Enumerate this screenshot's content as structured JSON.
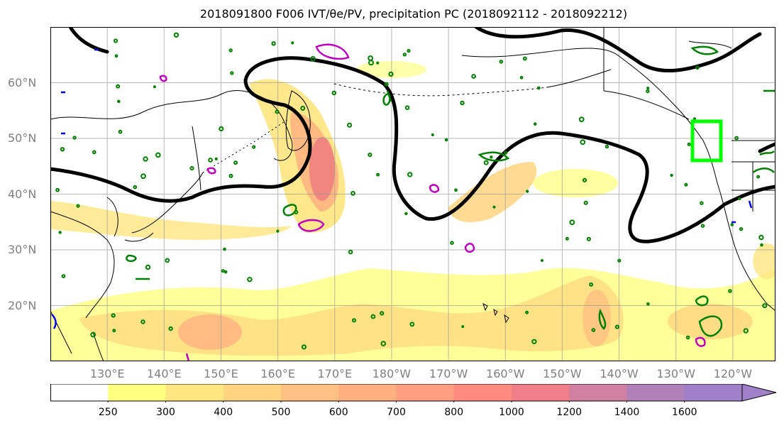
{
  "title": "2018091800 F006 IVT/θe/PV, precipitation PC (2018092112 - 2018092212)",
  "map": {
    "projection": "PlateCarree",
    "lon_range_east": [
      120,
      247.5
    ],
    "lat_range": [
      10,
      70
    ],
    "lat_labels": [
      "20°N",
      "30°N",
      "40°N",
      "50°N",
      "60°N"
    ],
    "lat_values": [
      20,
      30,
      40,
      50,
      60
    ],
    "lon_labels": [
      "130°E",
      "140°E",
      "150°E",
      "160°E",
      "170°E",
      "180°W",
      "170°W",
      "160°W",
      "150°W",
      "140°W",
      "130°W",
      "120°W"
    ],
    "lon_values": [
      130,
      140,
      150,
      160,
      170,
      180,
      190,
      200,
      210,
      220,
      230,
      240
    ],
    "grid": true,
    "coastline_color": "#000000",
    "contour_colors": {
      "theta_e": "#000000",
      "pv_positive": "#008000",
      "pv_negative": "#c000c0",
      "blue_contour": "#0000ff",
      "target_box": "#00ff00"
    }
  },
  "colorbar": {
    "tick_labels": [
      "250",
      "300",
      "400",
      "500",
      "600",
      "700",
      "800",
      "1000",
      "1200",
      "1400",
      "1600"
    ],
    "colors": [
      "#ffffff",
      "#ffff80",
      "#ffe680",
      "#ffd480",
      "#ffc080",
      "#ffb080",
      "#ff9f80",
      "#ff8a80",
      "#f07f8a",
      "#d080a0",
      "#b080b8",
      "#a080c8"
    ],
    "extend": "max"
  }
}
